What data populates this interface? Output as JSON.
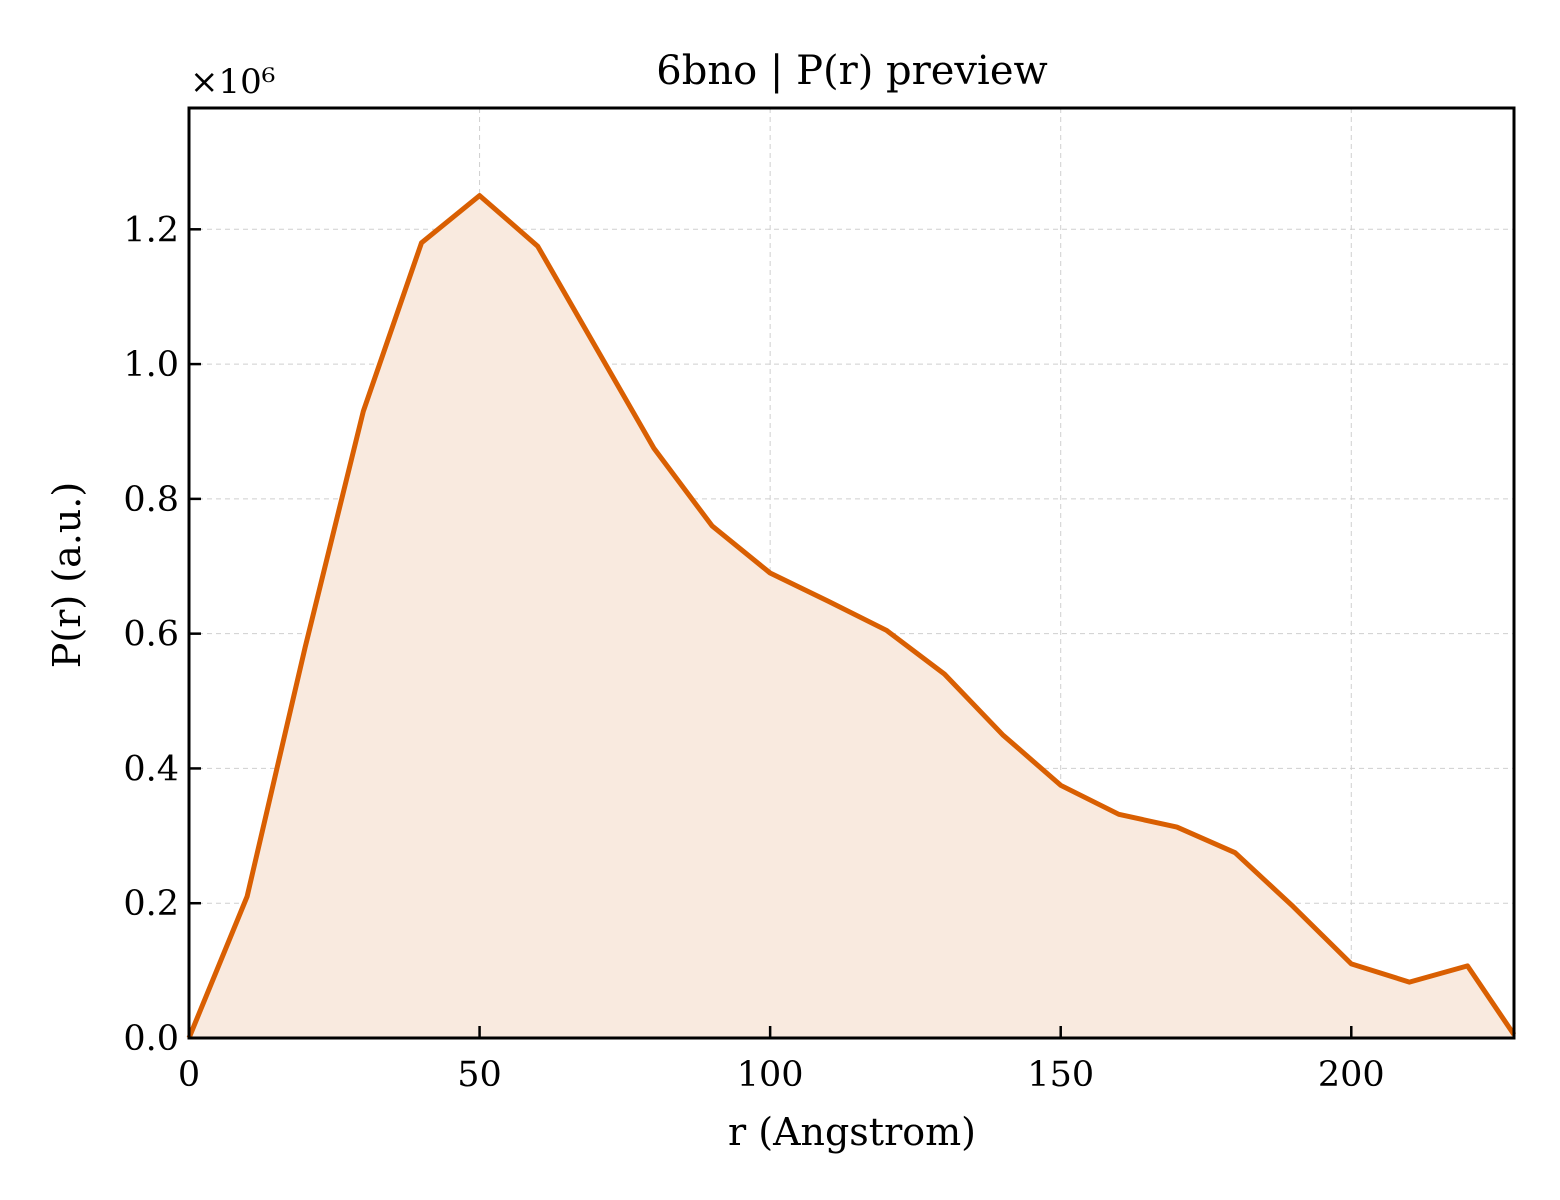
{
  "chart_data": {
    "type": "area",
    "title": "6bno | P(r) preview",
    "xlabel": "r (Angstrom)",
    "ylabel": "P(r) (a.u.)",
    "y_offset_label": "×10⁶",
    "xlim": [
      0,
      228
    ],
    "ylim": [
      0,
      1.38
    ],
    "x_ticks": [
      0,
      50,
      100,
      150,
      200
    ],
    "x_tick_labels": [
      "0",
      "50",
      "100",
      "150",
      "200"
    ],
    "y_ticks": [
      0,
      0.2,
      0.4,
      0.6,
      0.8,
      1.0,
      1.2
    ],
    "y_tick_labels": [
      "0.0",
      "0.2",
      "0.4",
      "0.6",
      "0.8",
      "1.0",
      "1.2"
    ],
    "grid": true,
    "line_color": "#d95f02",
    "fill_color": "#f9eadf",
    "series": [
      {
        "x": [
          0,
          10,
          20,
          30,
          40,
          50,
          60,
          70,
          80,
          90,
          100,
          110,
          120,
          130,
          140,
          150,
          160,
          170,
          180,
          190,
          200,
          210,
          220,
          228
        ],
        "values": [
          0.0,
          0.21,
          0.58,
          0.93,
          1.18,
          1.25,
          1.175,
          1.025,
          0.875,
          0.76,
          0.69,
          0.648,
          0.605,
          0.54,
          0.45,
          0.375,
          0.332,
          0.313,
          0.275,
          0.195,
          0.11,
          0.083,
          0.107,
          0.005
        ]
      }
    ]
  }
}
